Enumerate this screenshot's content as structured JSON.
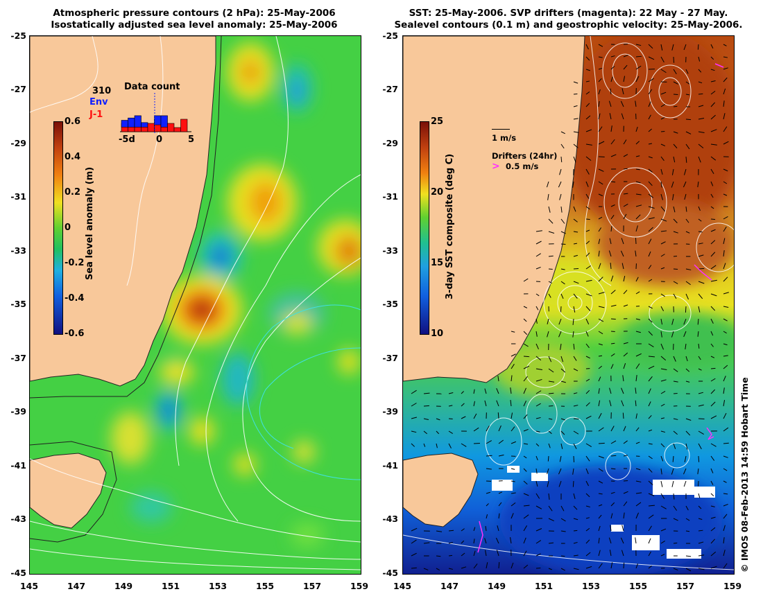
{
  "left": {
    "title_line1": "Atmospheric pressure contours (2 hPa): 25-May-2006",
    "title_line2": "Isostatically adjusted sea level anomaly: 25-May-2006",
    "colorbar": {
      "label": "Sea level anomaly (m)",
      "ticks": [
        "0.6",
        "0.4",
        "0.2",
        "0",
        "-0.2",
        "-0.4",
        "-0.6"
      ],
      "min": -0.6,
      "max": 0.6
    },
    "inset": {
      "title": "Data count",
      "count": "310",
      "series1": "Env",
      "series2": "J-1",
      "series1_color": "#1020ff",
      "series2_color": "#ff1010",
      "xticks": [
        "-5d",
        "0",
        "5"
      ],
      "env_counts": [
        3,
        4,
        5,
        2,
        0,
        4,
        5,
        0,
        0,
        0
      ],
      "j1_counts": [
        2,
        2,
        2,
        2,
        2,
        3,
        2,
        2,
        1,
        3
      ]
    }
  },
  "right": {
    "title_line1": "SST: 25-May-2006. SVP drifters (magenta): 22 May - 27 May.",
    "title_line2": "Sealevel contours (0.1 m) and geostrophic velocity: 25-May-2006.",
    "colorbar": {
      "label": "3-day SST composite (deg C)",
      "ticks": [
        "25",
        "20",
        "15",
        "10"
      ],
      "min": 10,
      "max": 25
    },
    "velocity_key": "1 m/s",
    "drifter_key_title": "Drifters (24hr)",
    "drifter_key_value": "0.5 m/s",
    "drifter_color": "#ff30ff"
  },
  "axes": {
    "yticks": [
      "-25",
      "-27",
      "-29",
      "-31",
      "-33",
      "-35",
      "-37",
      "-39",
      "-41",
      "-43",
      "-45"
    ],
    "xticks": [
      "145",
      "147",
      "149",
      "151",
      "153",
      "155",
      "157",
      "159"
    ]
  },
  "colors": {
    "land": "#f8c89a",
    "ocean_base": "#44d044",
    "sst_warm": "#b84a10",
    "sst_cool": "#1098e0"
  },
  "credit": "© IMOS 08-Feb-2013 14:59 Hobart Time"
}
